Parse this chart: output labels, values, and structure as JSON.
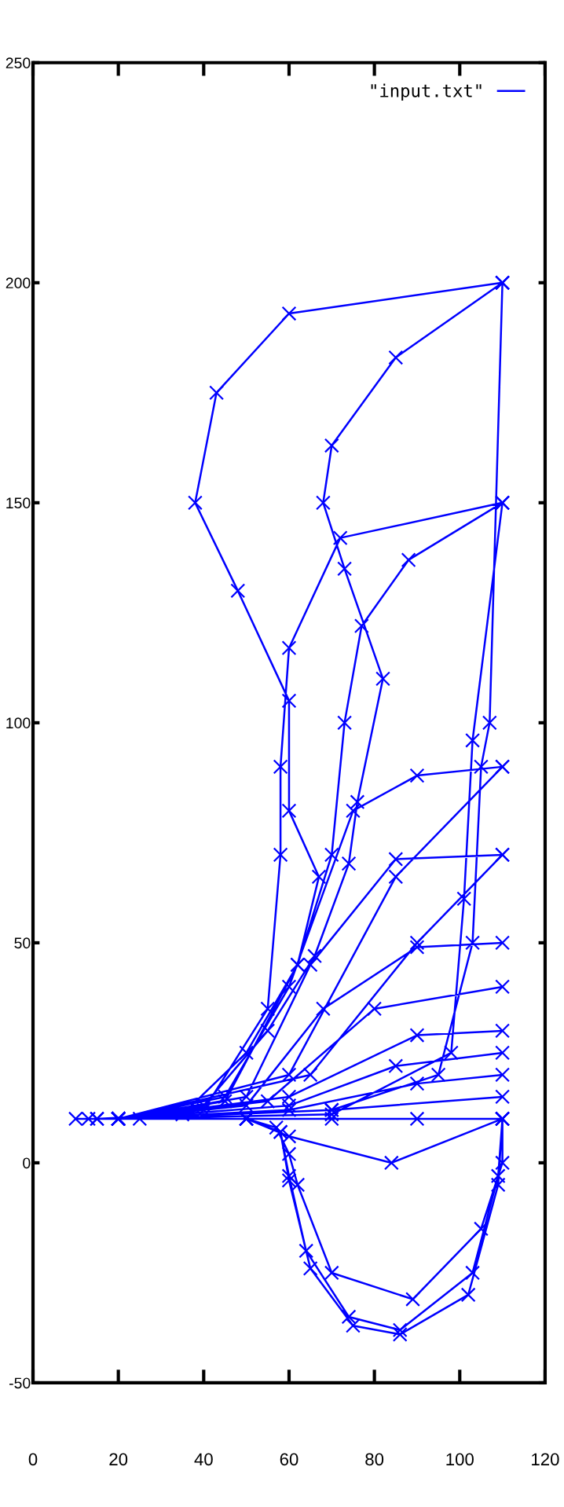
{
  "chart_data": {
    "type": "line",
    "xlim": [
      0,
      120
    ],
    "ylim": [
      -50,
      250
    ],
    "xticks": [
      0,
      20,
      40,
      60,
      80,
      100,
      120
    ],
    "yticks": [
      -50,
      0,
      50,
      100,
      150,
      200,
      250
    ],
    "grid": false,
    "legend": "top right",
    "marker": "cross",
    "line_style": "solid",
    "series": [
      {
        "name": "\"input.txt\"",
        "color": "#0000ff",
        "x": [
          15,
          35,
          50,
          62,
          67,
          60,
          60,
          48,
          38,
          43,
          60,
          110,
          null,
          20,
          40,
          55,
          66,
          74,
          76,
          82,
          73,
          68,
          70,
          85,
          110,
          null,
          20,
          70,
          95,
          103,
          105,
          107,
          110,
          null,
          20,
          70,
          98,
          101,
          103,
          110,
          null,
          20,
          40,
          55,
          58,
          58,
          60,
          72,
          110,
          null,
          20,
          45,
          62,
          70,
          73,
          77,
          88,
          110,
          null,
          20,
          45,
          60,
          75,
          90,
          110,
          null,
          20,
          60,
          85,
          110,
          null,
          20,
          50,
          65,
          85,
          110,
          null,
          20,
          65,
          90,
          110,
          null,
          20,
          50,
          68,
          90,
          110,
          null,
          20,
          55,
          80,
          110,
          null,
          20,
          60,
          90,
          110,
          null,
          20,
          60,
          85,
          110,
          null,
          20,
          60,
          90,
          110,
          null,
          20,
          70,
          110,
          null,
          10,
          13,
          15,
          25,
          50,
          70,
          90,
          110,
          null,
          20,
          50,
          60,
          84,
          110,
          null,
          20,
          50,
          57,
          60,
          62,
          70,
          89,
          105,
          110,
          110,
          null,
          20,
          50,
          58,
          60,
          64,
          74,
          86,
          103,
          109,
          110,
          null,
          20,
          50,
          58,
          60,
          65,
          75,
          86,
          102,
          109,
          110
        ],
        "values": [
          10,
          11,
          25,
          45,
          65,
          80,
          105,
          130,
          150,
          175,
          193,
          200,
          null,
          10,
          13,
          30,
          47,
          68,
          82,
          110,
          135,
          150,
          163,
          183,
          200,
          null,
          10,
          12,
          20,
          50,
          90,
          100,
          200,
          null,
          10,
          11,
          25,
          60,
          96,
          150,
          null,
          10,
          12,
          35,
          70,
          90,
          117,
          142,
          150,
          null,
          10,
          14,
          45,
          70,
          100,
          122,
          137,
          150,
          null,
          10,
          15,
          40,
          80,
          88,
          90,
          null,
          10,
          20,
          65,
          90,
          null,
          10,
          15,
          45,
          69,
          70,
          null,
          10,
          20,
          50,
          70,
          null,
          10,
          13,
          35,
          49,
          50,
          null,
          10,
          14,
          35,
          40,
          null,
          10,
          15,
          29,
          30,
          null,
          10,
          13,
          22,
          25,
          null,
          10,
          12,
          18,
          20,
          null,
          10,
          12,
          15,
          null,
          10,
          10,
          10,
          10,
          10,
          10,
          10,
          10,
          null,
          10,
          10,
          6,
          0,
          10,
          null,
          10,
          10,
          8,
          2,
          -5,
          -25,
          -31,
          -15,
          0,
          10,
          null,
          10,
          10,
          7,
          -3,
          -20,
          -35,
          -38,
          -25,
          -3,
          10,
          null,
          10,
          10,
          7,
          -4,
          -24,
          -37,
          -39,
          -30,
          -5,
          10
        ]
      }
    ]
  }
}
